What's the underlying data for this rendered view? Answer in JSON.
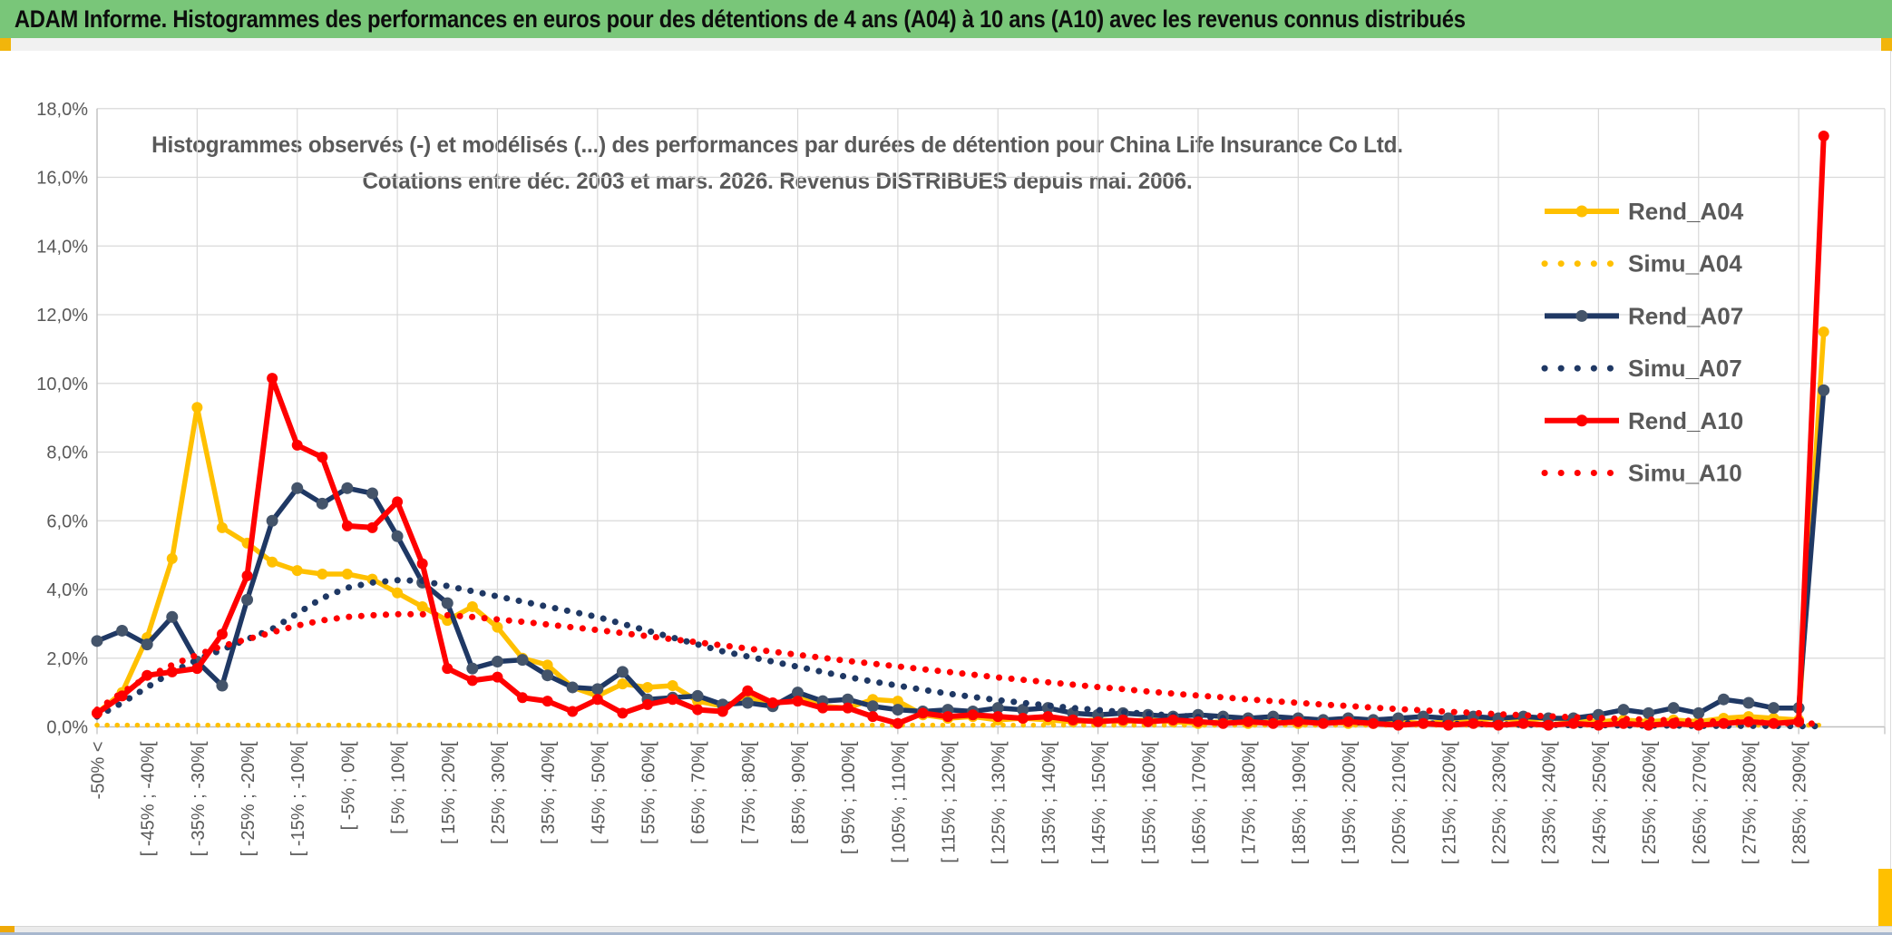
{
  "window": {
    "title": "ADAM Informe. Histogrammes des performances en euros pour des détentions de 4 ans (A04) à 10 ans (A10) avec les revenus connus distribués"
  },
  "colors": {
    "header_bg": "#79c679",
    "text_gray": "#595959",
    "gridline": "#d9d9d9",
    "axis_line": "#bfbfbf",
    "gold": "#FFC000",
    "navy": "#1F3864",
    "navy_marker": "#44546A",
    "red": "#FF0000",
    "accent_gold": "#f2b50b"
  },
  "chart_data": {
    "type": "line",
    "title_line1": "Histogrammes observés (-) et modélisés (...) des performances par durées de détention pour China Life Insurance Co Ltd.",
    "title_line2": "Cotations entre déc. 2003 et mars. 2026. Revenus DISTRIBUES depuis mai. 2006.",
    "ylim": [
      0,
      18
    ],
    "ytick_step_pct": 2,
    "ytick_labels": [
      "0,0%",
      "2,0%",
      "4,0%",
      "6,0%",
      "8,0%",
      "10,0%",
      "12,0%",
      "14,0%",
      "16,0%",
      "18,0%"
    ],
    "grid": true,
    "legend_position": "upper-right-inside",
    "num_categories": 70,
    "xtick_every": 2,
    "xtick_labels": [
      "-50% <",
      "[ -45% ; -40%[",
      "[ -35% ; -30%[",
      "[ -25% ; -20%[",
      "[ -15% ; -10%[",
      "[ -5% ; 0%[",
      "[ 5% ; 10%[",
      "[ 15% ; 20%[",
      "[ 25% ; 30%[",
      "[ 35% ; 40%[",
      "[ 45% ; 50%[",
      "[ 55% ; 60%[",
      "[ 65% ; 70%[",
      "[ 75% ; 80%[",
      "[ 85% ; 90%[",
      "[ 95% ; 100%[",
      "[ 105% ; 110%[",
      "[ 115% ; 120%[",
      "[ 125% ; 130%[",
      "[ 135% ; 140%[",
      "[ 145% ; 150%[",
      "[ 155% ; 160%[",
      "[ 165% ; 170%[",
      "[ 175% ; 180%[",
      "[ 185% ; 190%[",
      "[ 195% ; 200%[",
      "[ 205% ; 210%[",
      "[ 215% ; 220%[",
      "[ 225% ; 230%[",
      "[ 235% ; 240%[",
      "[ 245% ; 250%[",
      "[ 255% ; 260%[",
      "[ 265% ; 270%[",
      "[ 275% ; 280%[",
      "[ 285% ; 290%["
    ],
    "series": [
      {
        "name": "Rend_A04",
        "style": "solid",
        "color": "#FFC000",
        "marker_color": "#FFC000",
        "values": [
          0.4,
          1.0,
          2.6,
          4.9,
          9.3,
          5.8,
          5.35,
          4.8,
          4.55,
          4.45,
          4.45,
          4.3,
          3.9,
          3.5,
          3.1,
          3.5,
          2.9,
          2.0,
          1.8,
          1.15,
          0.9,
          1.25,
          1.15,
          1.2,
          0.75,
          0.6,
          0.85,
          0.65,
          0.85,
          0.6,
          0.55,
          0.8,
          0.75,
          0.35,
          0.25,
          0.3,
          0.2,
          0.25,
          0.2,
          0.15,
          0.2,
          0.15,
          0.2,
          0.15,
          0.1,
          0.15,
          0.1,
          0.15,
          0.1,
          0.15,
          0.1,
          0.1,
          0.15,
          0.1,
          0.15,
          0.2,
          0.25,
          0.2,
          0.25,
          0.2,
          0.15,
          0.2,
          0.15,
          0.2,
          0.15,
          0.25,
          0.3,
          0.25,
          0.2,
          11.5
        ]
      },
      {
        "name": "Simu_A04",
        "style": "dotted",
        "color": "#FFC000",
        "values": [
          0.05,
          0.05,
          0.05,
          0.05,
          0.05,
          0.05,
          0.05,
          0.05,
          0.05,
          0.05,
          0.05,
          0.05,
          0.05,
          0.05,
          0.05,
          0.05,
          0.05,
          0.05,
          0.05,
          0.05,
          0.05,
          0.05,
          0.05,
          0.05,
          0.05,
          0.05,
          0.05,
          0.05,
          0.05,
          0.05,
          0.05,
          0.05,
          0.05,
          0.05,
          0.05,
          0.05,
          0.05,
          0.05,
          0.05,
          0.05,
          0.05,
          0.05,
          0.05,
          0.05,
          0.05,
          0.05,
          0.05,
          0.05,
          0.05,
          0.05,
          0.05,
          0.05,
          0.05,
          0.05,
          0.05,
          0.05,
          0.05,
          0.05,
          0.05,
          0.05,
          0.05,
          0.05,
          0.05,
          0.05,
          0.05,
          0.05,
          0.05,
          0.05,
          0.05,
          0.05
        ]
      },
      {
        "name": "Rend_A07",
        "style": "solid",
        "color": "#1F3864",
        "marker_color": "#44546A",
        "values": [
          2.5,
          2.8,
          2.4,
          3.2,
          1.9,
          1.2,
          3.7,
          6.0,
          6.95,
          6.5,
          6.95,
          6.8,
          5.55,
          4.2,
          3.6,
          1.7,
          1.9,
          1.95,
          1.5,
          1.15,
          1.1,
          1.6,
          0.8,
          0.85,
          0.9,
          0.65,
          0.7,
          0.6,
          1.0,
          0.75,
          0.8,
          0.6,
          0.5,
          0.45,
          0.5,
          0.45,
          0.55,
          0.5,
          0.55,
          0.4,
          0.35,
          0.4,
          0.35,
          0.3,
          0.35,
          0.3,
          0.25,
          0.3,
          0.25,
          0.2,
          0.25,
          0.2,
          0.25,
          0.3,
          0.25,
          0.3,
          0.25,
          0.3,
          0.25,
          0.25,
          0.35,
          0.5,
          0.4,
          0.55,
          0.4,
          0.8,
          0.7,
          0.55,
          0.55,
          9.8
        ]
      },
      {
        "name": "Simu_A07",
        "style": "dotted",
        "color": "#1F3864",
        "values": [
          0.3,
          0.7,
          1.15,
          1.6,
          1.95,
          2.25,
          2.55,
          2.85,
          3.3,
          3.75,
          4.05,
          4.2,
          4.27,
          4.25,
          4.1,
          3.95,
          3.8,
          3.65,
          3.5,
          3.35,
          3.2,
          3.0,
          2.8,
          2.6,
          2.4,
          2.2,
          2.05,
          1.9,
          1.75,
          1.6,
          1.45,
          1.32,
          1.2,
          1.08,
          0.97,
          0.87,
          0.78,
          0.7,
          0.62,
          0.55,
          0.49,
          0.43,
          0.38,
          0.33,
          0.29,
          0.26,
          0.23,
          0.2,
          0.18,
          0.16,
          0.14,
          0.12,
          0.11,
          0.1,
          0.09,
          0.08,
          0.07,
          0.06,
          0.06,
          0.05,
          0.05,
          0.04,
          0.04,
          0.04,
          0.03,
          0.03,
          0.03,
          0.03,
          0.02,
          0.02
        ]
      },
      {
        "name": "Rend_A10",
        "style": "solid",
        "color": "#FF0000",
        "marker_color": "#FF0000",
        "values": [
          0.4,
          0.9,
          1.5,
          1.6,
          1.7,
          2.7,
          4.4,
          10.15,
          8.2,
          7.85,
          5.85,
          5.8,
          6.55,
          4.75,
          1.7,
          1.35,
          1.45,
          0.85,
          0.75,
          0.45,
          0.8,
          0.4,
          0.65,
          0.8,
          0.5,
          0.45,
          1.05,
          0.7,
          0.75,
          0.55,
          0.55,
          0.3,
          0.1,
          0.4,
          0.3,
          0.35,
          0.3,
          0.25,
          0.3,
          0.2,
          0.15,
          0.2,
          0.15,
          0.2,
          0.15,
          0.1,
          0.15,
          0.1,
          0.15,
          0.1,
          0.15,
          0.1,
          0.05,
          0.1,
          0.05,
          0.1,
          0.05,
          0.1,
          0.05,
          0.1,
          0.05,
          0.1,
          0.05,
          0.1,
          0.05,
          0.1,
          0.15,
          0.1,
          0.15,
          17.2
        ]
      },
      {
        "name": "Simu_A10",
        "style": "dotted",
        "color": "#FF0000",
        "values": [
          0.5,
          1.0,
          1.45,
          1.8,
          2.1,
          2.35,
          2.55,
          2.75,
          2.95,
          3.1,
          3.2,
          3.25,
          3.28,
          3.28,
          3.25,
          3.2,
          3.13,
          3.06,
          2.98,
          2.9,
          2.82,
          2.73,
          2.64,
          2.55,
          2.46,
          2.37,
          2.28,
          2.19,
          2.1,
          2.01,
          1.92,
          1.84,
          1.76,
          1.68,
          1.6,
          1.52,
          1.44,
          1.37,
          1.3,
          1.23,
          1.16,
          1.1,
          1.03,
          0.97,
          0.91,
          0.86,
          0.8,
          0.75,
          0.7,
          0.65,
          0.61,
          0.56,
          0.52,
          0.48,
          0.44,
          0.41,
          0.37,
          0.34,
          0.31,
          0.28,
          0.26,
          0.23,
          0.21,
          0.19,
          0.17,
          0.15,
          0.13,
          0.12,
          0.1,
          0.09
        ]
      }
    ]
  }
}
